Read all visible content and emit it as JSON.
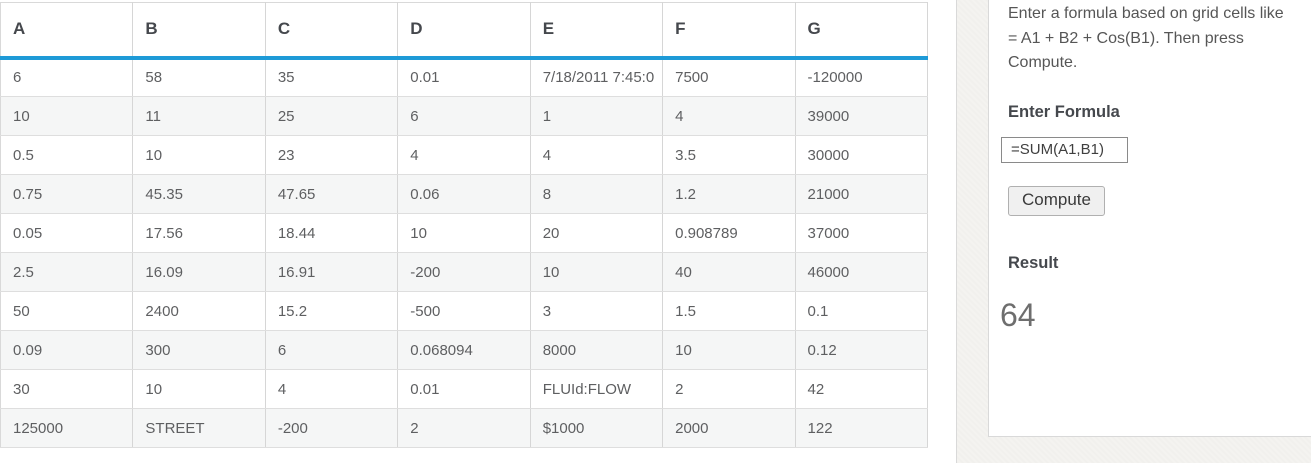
{
  "table": {
    "columns": [
      "A",
      "B",
      "C",
      "D",
      "E",
      "F",
      "G"
    ],
    "rows": [
      [
        "6",
        "58",
        "35",
        "0.01",
        "7/18/2011 7:45:0",
        "7500",
        "-120000"
      ],
      [
        "10",
        "11",
        "25",
        "6",
        "1",
        "4",
        "39000"
      ],
      [
        "0.5",
        "10",
        "23",
        "4",
        "4",
        "3.5",
        "30000"
      ],
      [
        "0.75",
        "45.35",
        "47.65",
        "0.06",
        "8",
        "1.2",
        "21000"
      ],
      [
        "0.05",
        "17.56",
        "18.44",
        "10",
        "20",
        "0.908789",
        "37000"
      ],
      [
        "2.5",
        "16.09",
        "16.91",
        "-200",
        "10",
        "40",
        "46000"
      ],
      [
        "50",
        "2400",
        "15.2",
        "-500",
        "3",
        "1.5",
        "0.1"
      ],
      [
        "0.09",
        "300",
        "6",
        "0.068094",
        "8000",
        "10",
        "0.12"
      ],
      [
        "30",
        "10",
        "4",
        "0.01",
        "FLUId:FLOW",
        "2",
        "42"
      ],
      [
        "125000",
        "STREET",
        "-200",
        "2",
        "$1000",
        "2000",
        "122"
      ]
    ]
  },
  "panel": {
    "instructions": "Enter a formula based on grid cells like = A1 + B2 + Cos(B1). Then press Compute.",
    "formula_label": "Enter Formula",
    "formula_value": "=SUM(A1,B1)",
    "compute_label": "Compute",
    "result_label": "Result",
    "result_value": "64"
  },
  "colors": {
    "header_accent": "#1e9ad7",
    "page_bg": "#f4f3f0",
    "card_bg": "#ffffff",
    "alt_row_bg": "#f5f6f6",
    "border": "#d9d9d9"
  }
}
